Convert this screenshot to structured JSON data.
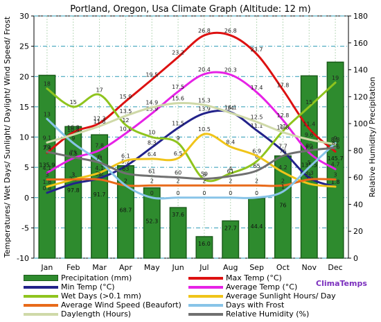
{
  "chart_data": {
    "type": "bar",
    "title": "Portland, Oregon, Usa Climate Graph (Altitude: 12 m)",
    "ylabel_left": "Temperatures/ Wet Days/ Sunlight/ Daylight/ Wind Speed/ Frost",
    "ylabel_right": "Relative Humidity/ Precipitation",
    "categories": [
      "Jan",
      "Feb",
      "Mar",
      "Apr",
      "May",
      "Jun",
      "Jul",
      "Aug",
      "Sep",
      "Oct",
      "Nov",
      "Dec"
    ],
    "ylim_left": [
      -10,
      30
    ],
    "yticks_left": [
      "-10",
      "-5",
      "0",
      "5",
      "10",
      "15",
      "20",
      "25",
      "30"
    ],
    "ylim_right": [
      0,
      180
    ],
    "yticks_right": [
      "0",
      "20",
      "40",
      "60",
      "80",
      "100",
      "120",
      "140",
      "160",
      "180"
    ],
    "grid": true,
    "precipitation": {
      "name": "Precipitation (mm)",
      "color": "#2e8b2e",
      "values": [
        135.9,
        97.8,
        91.7,
        68.7,
        52.3,
        37.6,
        16.0,
        27.7,
        44.4,
        76.0,
        135.5,
        145.7
      ],
      "labels": [
        "135.9",
        "97.8",
        "91.7",
        "68.7",
        "52.3",
        "37.6",
        "16.0",
        "27.7",
        "44.4",
        "76",
        "135.5",
        "145.7"
      ]
    },
    "series": [
      {
        "name": "Max Temp (°C)",
        "color": "#dd1111",
        "axis": "left",
        "values": [
          7.4,
          10.8,
          12.3,
          15.9,
          19.5,
          23.2,
          26.8,
          26.8,
          23.7,
          17.8,
          11.4,
          7.6
        ],
        "labels": [
          "7.4",
          "10.8",
          "12.3",
          "15.9",
          "19.5",
          "23.2",
          "26.8",
          "26.8",
          "23.7",
          "17.8",
          "11.4",
          "7.6"
        ]
      },
      {
        "name": "Min Temp (°C)",
        "color": "#22228a",
        "axis": "left",
        "values": [
          0.8,
          2.3,
          3.2,
          5.2,
          8.3,
          11.5,
          13.9,
          14.1,
          11.1,
          7.7,
          3.3,
          1.8
        ],
        "labels": [
          "0.8",
          "2.3",
          "3.2",
          "5.2",
          "8.3",
          "11.5",
          "13.9",
          "14.1",
          "11.1",
          "7.7",
          "3.3",
          "1.8"
        ]
      },
      {
        "name": "Average Temp (°C)",
        "color": "#e622e6",
        "axis": "left",
        "values": [
          4.1,
          6.5,
          7.8,
          10.6,
          13.9,
          17.5,
          20.4,
          20.3,
          17.4,
          12.8,
          7.4,
          4.7
        ],
        "labels": [
          "4.1",
          "6.5",
          "7.8",
          "10.6",
          "13.9",
          "17.5",
          "20.4",
          "20.3",
          "17.4",
          "12.8",
          "7.4",
          "4.7"
        ]
      },
      {
        "name": "Wet Days (>0.1 mm)",
        "color": "#8fc41e",
        "axis": "left",
        "values": [
          18,
          15,
          17,
          12,
          10,
          9,
          3,
          4,
          6,
          11,
          15,
          19
        ],
        "labels": [
          "18",
          "15",
          "17",
          "12",
          "10",
          "9",
          "3",
          "4",
          "6",
          "11",
          "15",
          "19"
        ]
      },
      {
        "name": "Average Sunlight Hours/ Day",
        "color": "#f0c419",
        "axis": "left",
        "values": [
          1.8,
          3,
          4.1,
          6.1,
          6.4,
          6.5,
          10.5,
          8.4,
          6.9,
          4.2,
          2.3,
          1.8
        ],
        "labels": [
          "1.8",
          "3",
          "4.1",
          "6.1",
          "6.4",
          "6.5",
          "10.5",
          "8.4",
          "6.9",
          "4.2",
          "2.3",
          "1.8"
        ]
      },
      {
        "name": "Average Wind Speed (Beaufort)",
        "color": "#e86a1a",
        "axis": "left",
        "values": [
          3,
          3,
          3,
          2,
          2,
          2,
          2,
          2,
          2,
          2,
          3,
          3
        ],
        "labels": [
          "3",
          "3",
          "3",
          "2",
          "2",
          "2",
          "2",
          "2",
          "2",
          "2",
          "3",
          "3"
        ]
      },
      {
        "name": "Days with Frost",
        "color": "#88c4e8",
        "axis": "left",
        "values": [
          13,
          9,
          6,
          2,
          0,
          0,
          0,
          0,
          0,
          1,
          5,
          9
        ],
        "labels": [
          "13",
          "9",
          "6",
          "2",
          "0",
          "0",
          "0",
          "0",
          "0",
          "1",
          "5",
          "9"
        ]
      },
      {
        "name": "Daylength (Hours)",
        "color": "#cfd9a8",
        "axis": "left",
        "values": [
          9.1,
          10.4,
          11.8,
          13.5,
          14.9,
          15.6,
          15.3,
          14,
          12.5,
          10.8,
          9.6,
          8.8
        ],
        "labels": [
          "9.1",
          "10.4",
          "11.8",
          "13.5",
          "14.9",
          "15.6",
          "15.3",
          "14",
          "12.5",
          "10.8",
          "9.6",
          "8.8"
        ]
      },
      {
        "name": "Relative Humidity (%)",
        "color": "#707070",
        "axis": "right",
        "values": [
          79,
          75,
          71,
          63,
          61,
          60,
          59,
          61,
          65,
          76,
          80,
          82
        ],
        "labels": [
          "79",
          "75",
          "71",
          "63",
          "61",
          "60",
          "59",
          "61",
          "65",
          "76",
          "80",
          "82"
        ]
      }
    ]
  },
  "brand": "ClimaTemps"
}
